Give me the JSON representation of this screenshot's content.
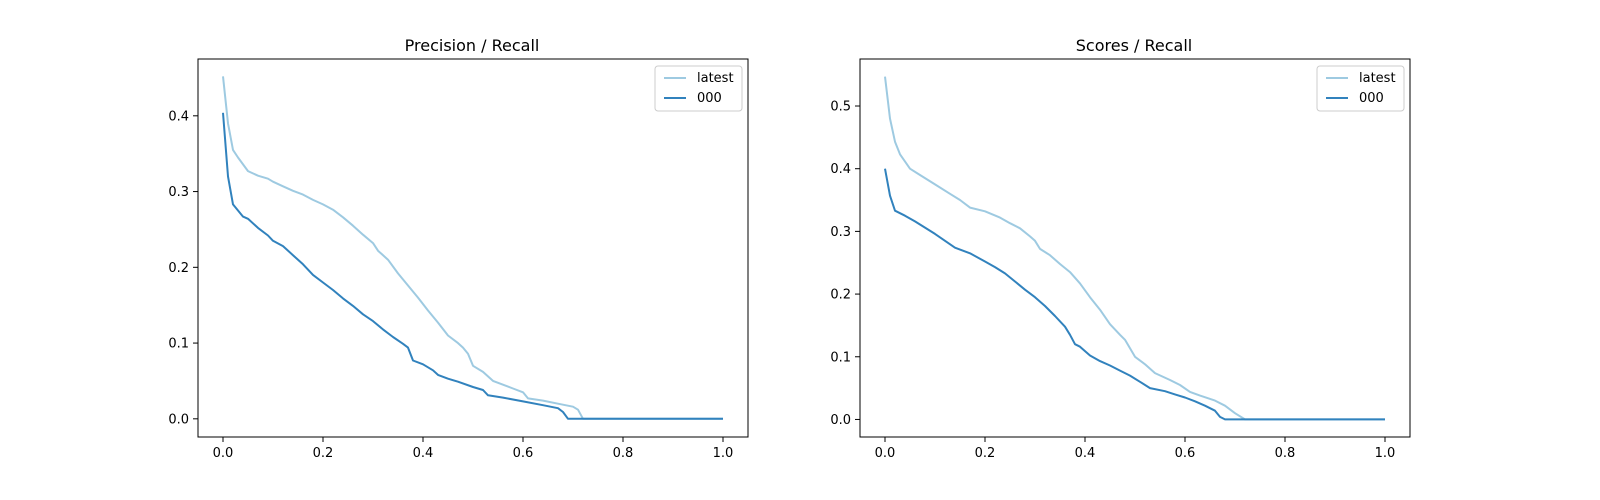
{
  "chart_data": [
    {
      "type": "line",
      "title": "Precision / Recall",
      "xlabel": "",
      "ylabel": "",
      "xlim": [
        -0.05,
        1.05
      ],
      "ylim": [
        -0.024,
        0.475
      ],
      "xticks": [
        "0.0",
        "0.2",
        "0.4",
        "0.6",
        "0.8",
        "1.0"
      ],
      "yticks": [
        "0.0",
        "0.1",
        "0.2",
        "0.3",
        "0.4"
      ],
      "legend_position": "top-right",
      "grid": false,
      "series": [
        {
          "name": "latest",
          "color": "#9ecae1",
          "points": [
            [
              0.0,
              0.452
            ],
            [
              0.01,
              0.39
            ],
            [
              0.02,
              0.355
            ],
            [
              0.03,
              0.345
            ],
            [
              0.05,
              0.327
            ],
            [
              0.07,
              0.321
            ],
            [
              0.09,
              0.317
            ],
            [
              0.1,
              0.313
            ],
            [
              0.12,
              0.307
            ],
            [
              0.14,
              0.301
            ],
            [
              0.16,
              0.296
            ],
            [
              0.18,
              0.289
            ],
            [
              0.2,
              0.283
            ],
            [
              0.22,
              0.276
            ],
            [
              0.24,
              0.266
            ],
            [
              0.26,
              0.255
            ],
            [
              0.28,
              0.243
            ],
            [
              0.3,
              0.232
            ],
            [
              0.31,
              0.222
            ],
            [
              0.33,
              0.21
            ],
            [
              0.35,
              0.192
            ],
            [
              0.37,
              0.176
            ],
            [
              0.39,
              0.16
            ],
            [
              0.41,
              0.143
            ],
            [
              0.43,
              0.127
            ],
            [
              0.45,
              0.11
            ],
            [
              0.47,
              0.1
            ],
            [
              0.48,
              0.094
            ],
            [
              0.49,
              0.086
            ],
            [
              0.5,
              0.07
            ],
            [
              0.52,
              0.062
            ],
            [
              0.54,
              0.05
            ],
            [
              0.56,
              0.045
            ],
            [
              0.58,
              0.04
            ],
            [
              0.6,
              0.035
            ],
            [
              0.61,
              0.027
            ],
            [
              0.64,
              0.024
            ],
            [
              0.67,
              0.02
            ],
            [
              0.7,
              0.016
            ],
            [
              0.71,
              0.012
            ],
            [
              0.72,
              0.0
            ],
            [
              0.8,
              0.0
            ],
            [
              0.9,
              0.0
            ],
            [
              1.0,
              0.0
            ]
          ]
        },
        {
          "name": "000",
          "color": "#3182bd",
          "points": [
            [
              0.0,
              0.404
            ],
            [
              0.01,
              0.32
            ],
            [
              0.02,
              0.283
            ],
            [
              0.03,
              0.275
            ],
            [
              0.04,
              0.267
            ],
            [
              0.05,
              0.264
            ],
            [
              0.07,
              0.252
            ],
            [
              0.09,
              0.242
            ],
            [
              0.1,
              0.235
            ],
            [
              0.12,
              0.228
            ],
            [
              0.14,
              0.216
            ],
            [
              0.16,
              0.204
            ],
            [
              0.18,
              0.19
            ],
            [
              0.2,
              0.18
            ],
            [
              0.22,
              0.17
            ],
            [
              0.24,
              0.159
            ],
            [
              0.26,
              0.149
            ],
            [
              0.28,
              0.138
            ],
            [
              0.3,
              0.129
            ],
            [
              0.32,
              0.118
            ],
            [
              0.34,
              0.108
            ],
            [
              0.36,
              0.099
            ],
            [
              0.37,
              0.094
            ],
            [
              0.38,
              0.077
            ],
            [
              0.4,
              0.072
            ],
            [
              0.42,
              0.064
            ],
            [
              0.43,
              0.058
            ],
            [
              0.45,
              0.053
            ],
            [
              0.47,
              0.049
            ],
            [
              0.5,
              0.042
            ],
            [
              0.52,
              0.038
            ],
            [
              0.53,
              0.031
            ],
            [
              0.56,
              0.028
            ],
            [
              0.6,
              0.023
            ],
            [
              0.64,
              0.018
            ],
            [
              0.67,
              0.014
            ],
            [
              0.68,
              0.009
            ],
            [
              0.69,
              0.0
            ],
            [
              0.8,
              0.0
            ],
            [
              0.9,
              0.0
            ],
            [
              1.0,
              0.0
            ]
          ]
        }
      ]
    },
    {
      "type": "line",
      "title": "Scores / Recall",
      "xlabel": "",
      "ylabel": "",
      "xlim": [
        -0.05,
        1.05
      ],
      "ylim": [
        -0.028,
        0.575
      ],
      "xticks": [
        "0.0",
        "0.2",
        "0.4",
        "0.6",
        "0.8",
        "1.0"
      ],
      "yticks": [
        "0.0",
        "0.1",
        "0.2",
        "0.3",
        "0.4",
        "0.5"
      ],
      "legend_position": "top-right",
      "grid": false,
      "series": [
        {
          "name": "latest",
          "color": "#9ecae1",
          "points": [
            [
              0.0,
              0.547
            ],
            [
              0.01,
              0.48
            ],
            [
              0.02,
              0.443
            ],
            [
              0.03,
              0.423
            ],
            [
              0.05,
              0.4
            ],
            [
              0.07,
              0.39
            ],
            [
              0.1,
              0.375
            ],
            [
              0.13,
              0.36
            ],
            [
              0.15,
              0.35
            ],
            [
              0.17,
              0.338
            ],
            [
              0.2,
              0.332
            ],
            [
              0.23,
              0.322
            ],
            [
              0.25,
              0.313
            ],
            [
              0.27,
              0.305
            ],
            [
              0.29,
              0.292
            ],
            [
              0.3,
              0.285
            ],
            [
              0.31,
              0.272
            ],
            [
              0.33,
              0.262
            ],
            [
              0.35,
              0.248
            ],
            [
              0.37,
              0.235
            ],
            [
              0.39,
              0.217
            ],
            [
              0.41,
              0.195
            ],
            [
              0.43,
              0.175
            ],
            [
              0.45,
              0.152
            ],
            [
              0.47,
              0.135
            ],
            [
              0.48,
              0.127
            ],
            [
              0.5,
              0.1
            ],
            [
              0.52,
              0.088
            ],
            [
              0.54,
              0.074
            ],
            [
              0.57,
              0.063
            ],
            [
              0.59,
              0.055
            ],
            [
              0.61,
              0.044
            ],
            [
              0.63,
              0.038
            ],
            [
              0.66,
              0.03
            ],
            [
              0.68,
              0.022
            ],
            [
              0.7,
              0.01
            ],
            [
              0.72,
              0.0
            ],
            [
              0.8,
              0.0
            ],
            [
              0.9,
              0.0
            ],
            [
              1.0,
              0.0
            ]
          ]
        },
        {
          "name": "000",
          "color": "#3182bd",
          "points": [
            [
              0.0,
              0.4
            ],
            [
              0.01,
              0.357
            ],
            [
              0.02,
              0.333
            ],
            [
              0.04,
              0.325
            ],
            [
              0.06,
              0.316
            ],
            [
              0.08,
              0.306
            ],
            [
              0.1,
              0.296
            ],
            [
              0.12,
              0.285
            ],
            [
              0.14,
              0.274
            ],
            [
              0.16,
              0.268
            ],
            [
              0.17,
              0.265
            ],
            [
              0.2,
              0.252
            ],
            [
              0.22,
              0.243
            ],
            [
              0.24,
              0.233
            ],
            [
              0.26,
              0.22
            ],
            [
              0.28,
              0.207
            ],
            [
              0.3,
              0.195
            ],
            [
              0.32,
              0.181
            ],
            [
              0.34,
              0.165
            ],
            [
              0.36,
              0.148
            ],
            [
              0.37,
              0.135
            ],
            [
              0.38,
              0.12
            ],
            [
              0.39,
              0.116
            ],
            [
              0.41,
              0.102
            ],
            [
              0.43,
              0.093
            ],
            [
              0.45,
              0.086
            ],
            [
              0.47,
              0.078
            ],
            [
              0.49,
              0.07
            ],
            [
              0.51,
              0.06
            ],
            [
              0.53,
              0.05
            ],
            [
              0.56,
              0.045
            ],
            [
              0.58,
              0.04
            ],
            [
              0.6,
              0.035
            ],
            [
              0.62,
              0.029
            ],
            [
              0.64,
              0.022
            ],
            [
              0.66,
              0.014
            ],
            [
              0.67,
              0.004
            ],
            [
              0.68,
              0.0
            ],
            [
              0.8,
              0.0
            ],
            [
              0.9,
              0.0
            ],
            [
              1.0,
              0.0
            ]
          ]
        }
      ]
    }
  ]
}
